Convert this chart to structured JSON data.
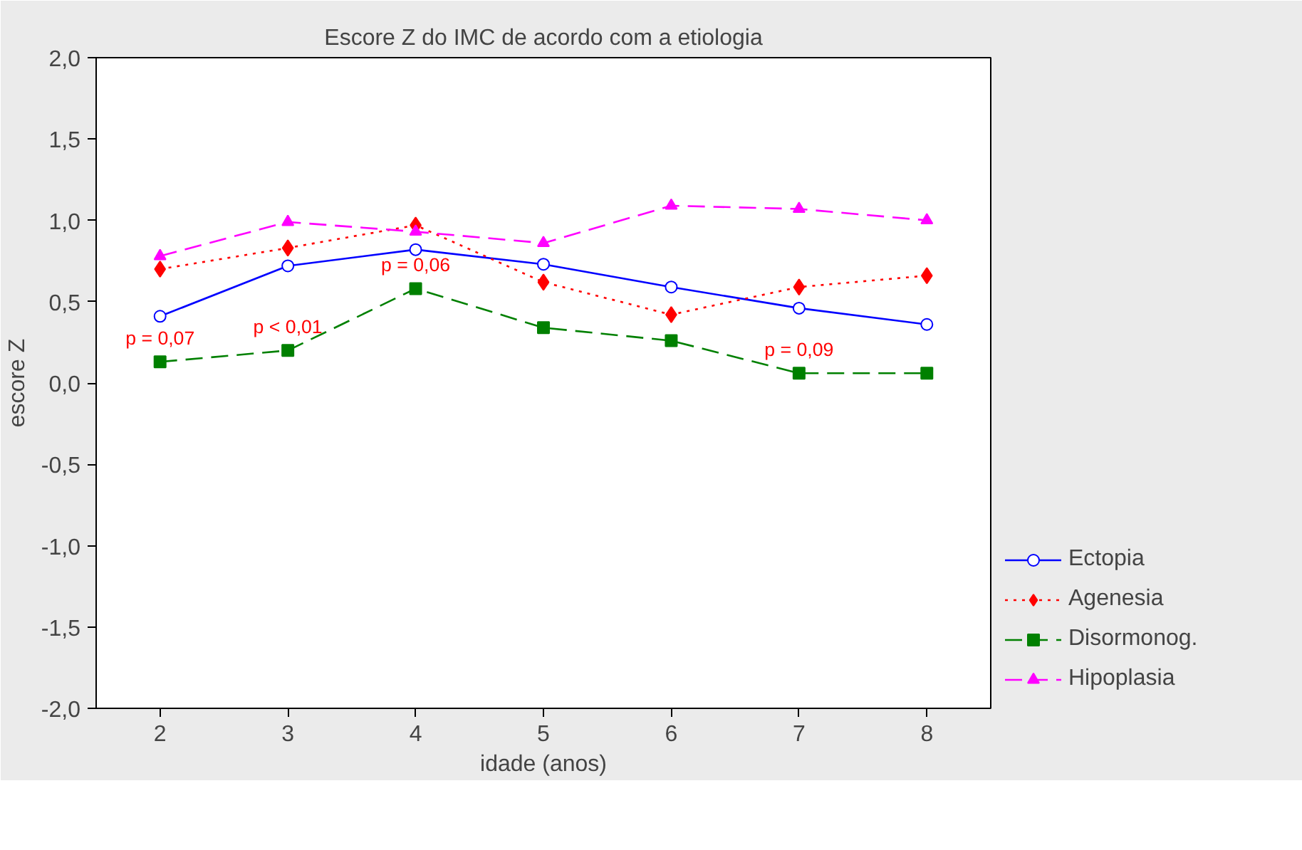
{
  "chart_data": {
    "type": "line",
    "title": "Escore Z do IMC de acordo com a etiologia",
    "xlabel": "idade (anos)",
    "ylabel": "escore Z",
    "x": [
      2,
      3,
      4,
      5,
      6,
      7,
      8
    ],
    "series": [
      {
        "name": "Ectopia",
        "color": "#0000ff",
        "marker": "circle",
        "line_style": "solid",
        "values": [
          0.41,
          0.72,
          0.82,
          0.73,
          0.59,
          0.46,
          0.36
        ]
      },
      {
        "name": "Agenesia",
        "color": "#ff0000",
        "marker": "diamond",
        "line_style": "dotted",
        "values": [
          0.7,
          0.83,
          0.97,
          0.62,
          0.42,
          0.59,
          0.66
        ]
      },
      {
        "name": "Disormonog.",
        "color": "#008000",
        "marker": "square",
        "line_style": "dashed",
        "values": [
          0.13,
          0.2,
          0.58,
          0.34,
          0.26,
          0.06,
          0.06
        ]
      },
      {
        "name": "Hipoplasia",
        "color": "#ff00ff",
        "marker": "triangle",
        "line_style": "dashed",
        "values": [
          0.78,
          0.99,
          0.93,
          0.86,
          1.09,
          1.07,
          1.0
        ]
      }
    ],
    "annotations": [
      {
        "text": "p = 0,07",
        "x": 2,
        "y": 0.13
      },
      {
        "text": "p < 0,01",
        "x": 3,
        "y": 0.2
      },
      {
        "text": "p = 0,06",
        "x": 4,
        "y": 0.58
      },
      {
        "text": "p = 0,09",
        "x": 7,
        "y": 0.06
      }
    ],
    "xlim": [
      1.5,
      8.5
    ],
    "xticks": [
      2,
      3,
      4,
      5,
      6,
      7,
      8
    ],
    "ylim": [
      -2,
      2
    ],
    "yticks": [
      {
        "value": -2,
        "label": "-2,0"
      },
      {
        "value": -1.5,
        "label": "-1,5"
      },
      {
        "value": -1,
        "label": "-1,0"
      },
      {
        "value": -0.5,
        "label": "-0,5"
      },
      {
        "value": 0,
        "label": "0,0"
      },
      {
        "value": 0.5,
        "label": "0,5"
      },
      {
        "value": 1,
        "label": "1,0"
      },
      {
        "value": 1.5,
        "label": "1,5"
      },
      {
        "value": 2,
        "label": "2,0"
      }
    ],
    "grid": false,
    "legend": "right"
  }
}
